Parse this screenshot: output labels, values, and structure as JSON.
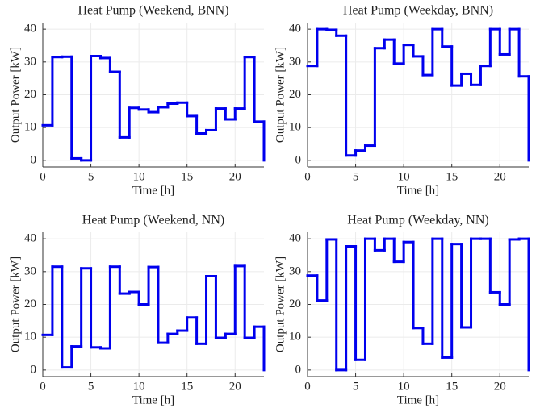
{
  "chart_data": [
    {
      "type": "step",
      "title": "Heat Pump (Weekend, BNN)",
      "xlabel": "Time [h]",
      "ylabel": "Output Power [kW]",
      "x": [
        0,
        1,
        2,
        3,
        4,
        5,
        6,
        7,
        8,
        9,
        10,
        11,
        12,
        13,
        14,
        15,
        16,
        17,
        18,
        19,
        20,
        21,
        22,
        23
      ],
      "series": [
        {
          "color": "#0000ee",
          "values": [
            10.7,
            31.5,
            31.6,
            0.6,
            0,
            31.8,
            31.2,
            27,
            7,
            16,
            15.5,
            14.7,
            16.2,
            17.3,
            17.6,
            13.5,
            8.2,
            9.2,
            15.8,
            12.5,
            15.8,
            31.5,
            11.8,
            0
          ]
        }
      ],
      "xlim": [
        0,
        23
      ],
      "xticks": [
        0,
        5,
        10,
        15,
        20
      ],
      "ylim": [
        -2,
        42
      ],
      "yticks": [
        0,
        10,
        20,
        30,
        40
      ],
      "grid": true
    },
    {
      "type": "step",
      "title": "Heat Pump (Weekday, BNN)",
      "xlabel": "Time [h]",
      "ylabel": "Output Power [kW]",
      "x": [
        0,
        1,
        2,
        3,
        4,
        5,
        6,
        7,
        8,
        9,
        10,
        11,
        12,
        13,
        14,
        15,
        16,
        17,
        18,
        19,
        20,
        21,
        22,
        23
      ],
      "series": [
        {
          "color": "#0000ee",
          "values": [
            28.8,
            40,
            39.8,
            38,
            1.5,
            3,
            4.5,
            34.2,
            36.8,
            29.5,
            35.2,
            31.7,
            26,
            40,
            34.7,
            22.8,
            26.4,
            23,
            28.8,
            40,
            32.3,
            40,
            25.6,
            0
          ]
        }
      ],
      "xlim": [
        0,
        23
      ],
      "xticks": [
        0,
        5,
        10,
        15,
        20
      ],
      "ylim": [
        -2,
        42
      ],
      "yticks": [
        0,
        10,
        20,
        30,
        40
      ],
      "grid": true
    },
    {
      "type": "step",
      "title": "Heat Pump (Weekend, NN)",
      "xlabel": "Time [h]",
      "ylabel": "Output Power [kW]",
      "x": [
        0,
        1,
        2,
        3,
        4,
        5,
        6,
        7,
        8,
        9,
        10,
        11,
        12,
        13,
        14,
        15,
        16,
        17,
        18,
        19,
        20,
        21,
        22,
        23
      ],
      "series": [
        {
          "color": "#0000ee",
          "values": [
            10.7,
            31.5,
            0.8,
            7.2,
            31,
            6.9,
            6.6,
            31.5,
            23.3,
            23.8,
            20,
            31.4,
            8.3,
            11,
            12,
            16,
            8,
            28.6,
            9.8,
            11,
            31.7,
            9.8,
            13.2,
            0
          ]
        }
      ],
      "xlim": [
        0,
        23
      ],
      "xticks": [
        0,
        5,
        10,
        15,
        20
      ],
      "ylim": [
        -2,
        42
      ],
      "yticks": [
        0,
        10,
        20,
        30,
        40
      ],
      "grid": true
    },
    {
      "type": "step",
      "title": "Heat Pump (Weekday, NN)",
      "xlabel": "Time [h]",
      "ylabel": "Output Power [kW]",
      "x": [
        0,
        1,
        2,
        3,
        4,
        5,
        6,
        7,
        8,
        9,
        10,
        11,
        12,
        13,
        14,
        15,
        16,
        17,
        18,
        19,
        20,
        21,
        22,
        23
      ],
      "series": [
        {
          "color": "#0000ee",
          "values": [
            28.8,
            21.2,
            39.8,
            0,
            37.7,
            3.1,
            40,
            36.5,
            40,
            33,
            39,
            12.8,
            8,
            40,
            3.8,
            38.4,
            13,
            40,
            40,
            23.7,
            20,
            39.8,
            40,
            0
          ]
        }
      ],
      "xlim": [
        0,
        23
      ],
      "xticks": [
        0,
        5,
        10,
        15,
        20
      ],
      "ylim": [
        -2,
        42
      ],
      "yticks": [
        0,
        10,
        20,
        30,
        40
      ],
      "grid": true
    }
  ]
}
